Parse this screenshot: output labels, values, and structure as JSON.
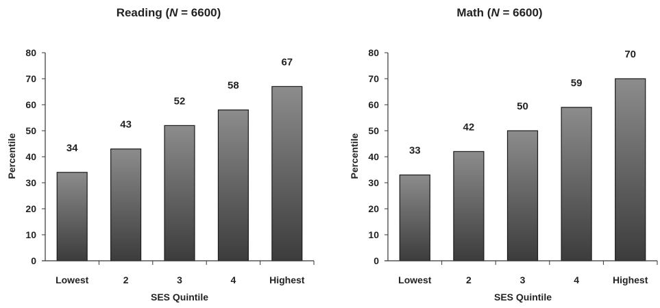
{
  "chart_data": [
    {
      "type": "bar",
      "title_main": "Reading (",
      "title_italic": "N",
      "title_rest": " = 6600)",
      "categories": [
        "Lowest",
        "2",
        "3",
        "4",
        "Highest"
      ],
      "values": [
        34,
        43,
        52,
        58,
        67
      ],
      "value_labels": [
        "34",
        "43",
        "52",
        "58",
        "67"
      ],
      "xlabel": "SES Quintile",
      "ylabel": "Percentile",
      "ylim": [
        0,
        80
      ],
      "yticks": [
        "0",
        "10",
        "20",
        "30",
        "40",
        "50",
        "60",
        "70",
        "80"
      ],
      "grid": false,
      "bar_color_top": "#8c8c8c",
      "bar_color_bottom": "#3c3c3c"
    },
    {
      "type": "bar",
      "title_main": "Math (",
      "title_italic": "N",
      "title_rest": " = 6600)",
      "categories": [
        "Lowest",
        "2",
        "3",
        "4",
        "Highest"
      ],
      "values": [
        33,
        42,
        50,
        59,
        70
      ],
      "value_labels": [
        "33",
        "42",
        "50",
        "59",
        "70"
      ],
      "xlabel": "SES Quintile",
      "ylabel": "Percentile",
      "ylim": [
        0,
        80
      ],
      "yticks": [
        "0",
        "10",
        "20",
        "30",
        "40",
        "50",
        "60",
        "70",
        "80"
      ],
      "grid": false,
      "bar_color_top": "#8c8c8c",
      "bar_color_bottom": "#3c3c3c"
    }
  ]
}
